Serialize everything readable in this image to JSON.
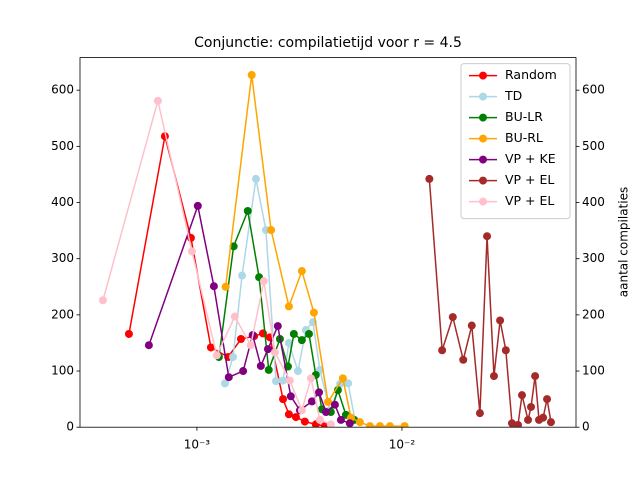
{
  "chart_data": {
    "type": "line",
    "title": "Conjunctie: compilatietijd voor r = 4.5",
    "y2_label": "aantal compilaties",
    "log_x": true,
    "legend": "upper right",
    "xlim": [
      0.000269,
      0.0706
    ],
    "xticks": [
      {
        "value": 0.001,
        "label": "10⁻³"
      },
      {
        "value": 0.01,
        "label": "10⁻²"
      }
    ],
    "ylim": [
      0,
      658
    ],
    "yticks": [
      0,
      100,
      200,
      300,
      400,
      500,
      600
    ],
    "y2lim": [
      0,
      658
    ],
    "y2ticks": [
      0,
      100,
      200,
      300,
      400,
      500,
      600
    ],
    "series": [
      {
        "name": "Random",
        "color": "#ff0000",
        "x": [
          0.000466,
          0.000698,
          0.000935,
          0.00117,
          0.00142,
          0.00164,
          0.0019,
          0.0021,
          0.00227,
          0.00263,
          0.00281,
          0.00304,
          0.00336,
          0.0038,
          0.00421
        ],
        "values": [
          166,
          518,
          337,
          142,
          125,
          157,
          162,
          167,
          160,
          50,
          23,
          18,
          10,
          5,
          2
        ]
      },
      {
        "name": "TD",
        "color": "#add8e6",
        "x": [
          0.00137,
          0.0015,
          0.00166,
          0.00194,
          0.00217,
          0.00243,
          0.00263,
          0.00281,
          0.00311,
          0.0034,
          0.00368,
          0.00398,
          0.00445,
          0.00499,
          0.00546,
          0.0059
        ],
        "values": [
          78,
          125,
          270,
          442,
          351,
          82,
          83,
          150,
          100,
          173,
          187,
          102,
          30,
          77,
          78,
          13
        ]
      },
      {
        "name": "BU-LR",
        "color": "#008000",
        "x": [
          0.00128,
          0.00151,
          0.00177,
          0.00201,
          0.00224,
          0.00254,
          0.00278,
          0.00297,
          0.00325,
          0.00352,
          0.0038,
          0.00407,
          0.0045,
          0.00487,
          0.00533,
          0.00583
        ],
        "values": [
          125,
          322,
          385,
          267,
          102,
          157,
          108,
          166,
          155,
          166,
          93,
          32,
          27,
          66,
          22,
          13
        ]
      },
      {
        "name": "BU-RL",
        "color": "#ffa500",
        "x": [
          0.00138,
          0.00185,
          0.0023,
          0.00281,
          0.00325,
          0.00372,
          0.00436,
          0.00515,
          0.00564,
          0.00624,
          0.00698,
          0.00781,
          0.00874,
          0.0103
        ],
        "values": [
          250,
          627,
          351,
          215,
          278,
          204,
          45,
          87,
          17,
          9,
          2,
          2,
          2,
          2
        ]
      },
      {
        "name": "VP + KE",
        "color": "#800080",
        "x": [
          0.000583,
          0.00101,
          0.00121,
          0.00143,
          0.00168,
          0.00187,
          0.00205,
          0.00222,
          0.00248,
          0.00287,
          0.00318,
          0.00364,
          0.00394,
          0.00426,
          0.00471,
          0.00504,
          0.00557
        ],
        "values": [
          146,
          394,
          251,
          89,
          100,
          164,
          109,
          139,
          180,
          55,
          30,
          46,
          62,
          27,
          40,
          13,
          7
        ]
      },
      {
        "name": "VP + EL",
        "color": "#a52a2a",
        "x": [
          0.0136,
          0.0157,
          0.0177,
          0.0199,
          0.0219,
          0.024,
          0.026,
          0.0281,
          0.0301,
          0.0321,
          0.0344,
          0.0368,
          0.0385,
          0.0412,
          0.0426,
          0.0446,
          0.0466,
          0.0488,
          0.051,
          0.0533
        ],
        "values": [
          442,
          137,
          196,
          120,
          181,
          25,
          340,
          91,
          190,
          137,
          7,
          4,
          57,
          13,
          36,
          91,
          13,
          17,
          50,
          9
        ]
      },
      {
        "name": "VP + EL",
        "color": "#ffc0cb",
        "x": [
          0.000348,
          0.000645,
          0.000946,
          0.00125,
          0.00153,
          0.00183,
          0.00212,
          0.0024,
          0.00284,
          0.00325,
          0.0036,
          0.00398,
          0.0045
        ],
        "values": [
          226,
          581,
          313,
          128,
          197,
          146,
          260,
          133,
          83,
          30,
          87,
          13,
          5
        ]
      }
    ]
  }
}
